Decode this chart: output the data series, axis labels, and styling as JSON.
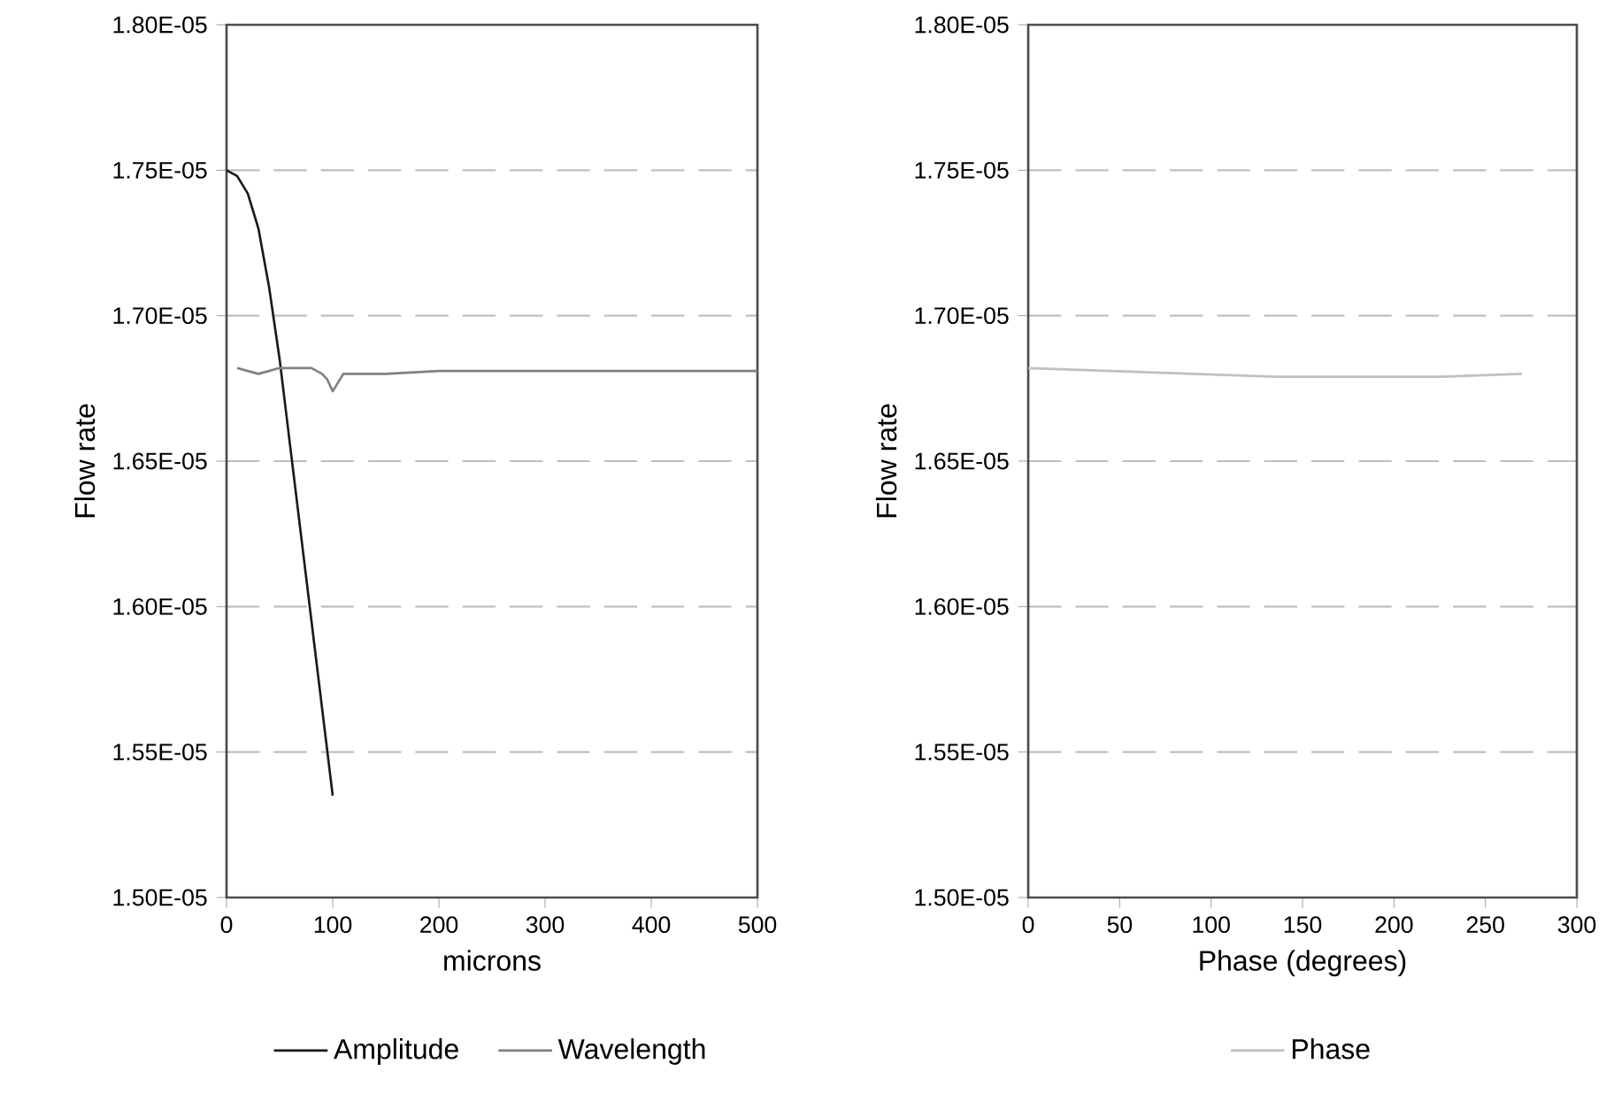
{
  "chart_data": [
    {
      "type": "line",
      "xlabel": "microns",
      "ylabel": "Flow rate",
      "xlim": [
        0,
        500
      ],
      "xticks": [
        0,
        100,
        200,
        300,
        400,
        500
      ],
      "ylim": [
        1.5e-05,
        1.8e-05
      ],
      "yticks": [
        {
          "value": 1.5e-05,
          "label": "1.50E-05"
        },
        {
          "value": 1.55e-05,
          "label": "1.55E-05"
        },
        {
          "value": 1.6e-05,
          "label": "1.60E-05"
        },
        {
          "value": 1.65e-05,
          "label": "1.65E-05"
        },
        {
          "value": 1.7e-05,
          "label": "1.70E-05"
        },
        {
          "value": 1.75e-05,
          "label": "1.75E-05"
        },
        {
          "value": 1.8e-05,
          "label": "1.80E-05"
        }
      ],
      "grid": "y",
      "legend": "bottom",
      "series": [
        {
          "name": "Amplitude",
          "color": "#1a1a1a",
          "x": [
            0,
            10,
            20,
            30,
            40,
            50,
            60,
            70,
            80,
            90,
            100
          ],
          "values": [
            1.75e-05,
            1.748e-05,
            1.742e-05,
            1.73e-05,
            1.71e-05,
            1.685e-05,
            1.655e-05,
            1.625e-05,
            1.595e-05,
            1.565e-05,
            1.535e-05
          ]
        },
        {
          "name": "Wavelength",
          "color": "#808080",
          "x": [
            10,
            20,
            30,
            40,
            50,
            60,
            70,
            80,
            90,
            95,
            100,
            105,
            110,
            150,
            200,
            250,
            300,
            400,
            500
          ],
          "values": [
            1.682e-05,
            1.681e-05,
            1.68e-05,
            1.681e-05,
            1.682e-05,
            1.682e-05,
            1.682e-05,
            1.682e-05,
            1.68e-05,
            1.678e-05,
            1.674e-05,
            1.677e-05,
            1.68e-05,
            1.68e-05,
            1.681e-05,
            1.681e-05,
            1.681e-05,
            1.681e-05,
            1.681e-05
          ]
        }
      ]
    },
    {
      "type": "line",
      "xlabel": "Phase (degrees)",
      "ylabel": "Flow rate",
      "xlim": [
        0,
        300
      ],
      "xticks": [
        0,
        50,
        100,
        150,
        200,
        250,
        300
      ],
      "ylim": [
        1.5e-05,
        1.8e-05
      ],
      "yticks": [
        {
          "value": 1.5e-05,
          "label": "1.50E-05"
        },
        {
          "value": 1.55e-05,
          "label": "1.55E-05"
        },
        {
          "value": 1.6e-05,
          "label": "1.60E-05"
        },
        {
          "value": 1.65e-05,
          "label": "1.65E-05"
        },
        {
          "value": 1.7e-05,
          "label": "1.70E-05"
        },
        {
          "value": 1.75e-05,
          "label": "1.75E-05"
        },
        {
          "value": 1.8e-05,
          "label": "1.80E-05"
        }
      ],
      "grid": "y",
      "legend": "bottom",
      "series": [
        {
          "name": "Phase",
          "color": "#c0c0c0",
          "x": [
            0,
            45,
            90,
            135,
            180,
            225,
            270
          ],
          "values": [
            1.682e-05,
            1.681e-05,
            1.68e-05,
            1.679e-05,
            1.679e-05,
            1.679e-05,
            1.68e-05
          ]
        }
      ]
    }
  ]
}
